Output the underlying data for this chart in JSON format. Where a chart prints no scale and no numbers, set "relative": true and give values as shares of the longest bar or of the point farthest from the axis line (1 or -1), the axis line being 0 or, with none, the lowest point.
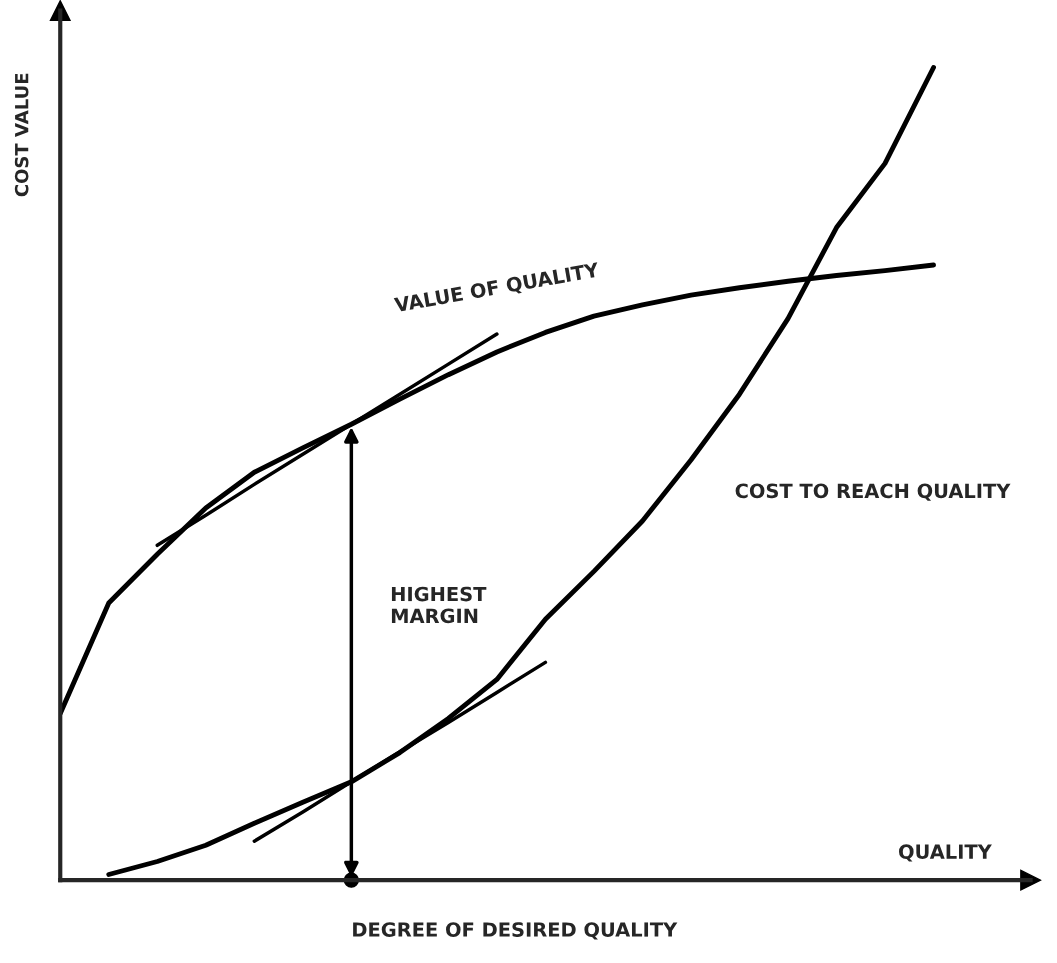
{
  "chart_data": {
    "type": "line",
    "relative": true,
    "xlabel": "QUALITY",
    "ylabel": "COST VALUE",
    "categories": [
      null,
      null,
      null,
      null,
      null,
      null,
      null,
      null,
      null,
      null,
      null,
      null,
      null,
      null,
      null,
      null,
      null,
      null,
      null
    ],
    "series": [
      {
        "name": "VALUE OF QUALITY",
        "color": "#000000",
        "values": [
          0.205,
          0.341,
          0.401,
          0.458,
          0.502,
          0.532,
          0.561,
          0.592,
          0.622,
          0.65,
          0.674,
          0.694,
          0.708,
          0.72,
          0.729,
          0.737,
          0.744,
          0.75,
          0.757
        ]
      },
      {
        "name": "COST TO REACH QUALITY",
        "color": "#000000",
        "values": [
          null,
          0.007,
          0.023,
          0.043,
          0.07,
          0.096,
          0.121,
          0.157,
          0.199,
          0.247,
          0.321,
          0.38,
          0.442,
          0.517,
          0.598,
          0.691,
          0.803,
          0.882,
          1.0
        ]
      },
      {
        "color": "#000000",
        "values": [
          null,
          null,
          0.412,
          0.449,
          0.487,
          0.524,
          0.561,
          0.598,
          0.635,
          0.672,
          null,
          null,
          null,
          null,
          null,
          null,
          null,
          null,
          null
        ]
      },
      {
        "color": "#000000",
        "values": [
          null,
          null,
          null,
          null,
          0.048,
          0.084,
          0.121,
          0.158,
          0.194,
          0.231,
          0.268,
          null,
          null,
          null,
          null,
          null,
          null,
          null,
          null
        ]
      }
    ],
    "annotations": [
      "HIGHEST MARGIN",
      "DEGREE OF DESIRED QUALITY"
    ]
  }
}
